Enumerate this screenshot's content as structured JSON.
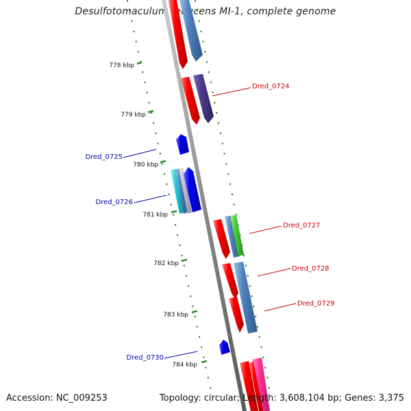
{
  "title": "Desulfotomaculum reducens MI-1, complete genome",
  "footer": {
    "accession": "Accession: NC_009253",
    "summary": "Topology: circular; Length: 3,608,104 bp; Genes: 3,375"
  },
  "ticks": [
    {
      "label": "778 kbp"
    },
    {
      "label": "779 kbp"
    },
    {
      "label": "780 kbp"
    },
    {
      "label": "781 kbp"
    },
    {
      "label": "782 kbp"
    },
    {
      "label": "783 kbp"
    },
    {
      "label": "784 kbp"
    }
  ],
  "gene_labels": [
    {
      "name": "Dred_0724",
      "color": "#cc0000"
    },
    {
      "name": "Dred_0725",
      "color": "#0000aa"
    },
    {
      "name": "Dred_0726",
      "color": "#0000aa"
    },
    {
      "name": "Dred_0727",
      "color": "#cc0000"
    },
    {
      "name": "Dred_0728",
      "color": "#cc0000"
    },
    {
      "name": "Dred_0729",
      "color": "#cc0000"
    },
    {
      "name": "Dred_0730",
      "color": "#0000aa"
    }
  ],
  "colors": {
    "forward_gene": "#ff0000",
    "reverse_gene": "#0000ee",
    "steelblue": "#4f81bd",
    "purple": "#4b3a8a",
    "cyan": "#1ec8d6",
    "green": "#44cc33",
    "pink": "#ff3399",
    "tick_green": "#2d8a2d",
    "backbone": "#888888"
  }
}
